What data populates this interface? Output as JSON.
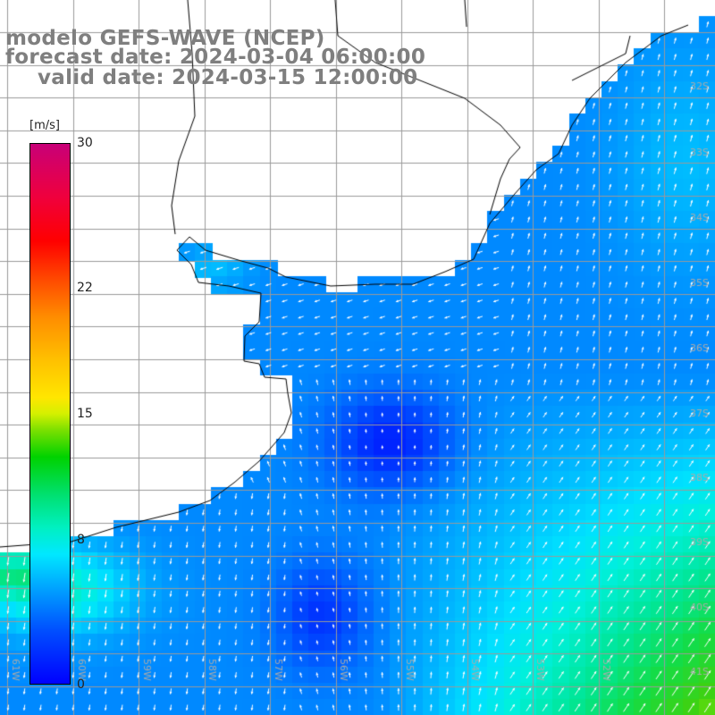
{
  "titles": {
    "model": "modelo GEFS-WAVE (NCEP)",
    "forecast": "forecast date: 2024-03-04 06:00:00",
    "valid": "valid date: 2024-03-15 12:00:00"
  },
  "colorbar": {
    "units": "[m/s]",
    "min": 0,
    "max": 30,
    "tick_labels": [
      "30",
      "22",
      "15",
      "8",
      "0"
    ],
    "tick_values": [
      30,
      22,
      15,
      8,
      0
    ],
    "palette": [
      "#0000ff",
      "#00a6ff",
      "#00e8ff",
      "#00d200",
      "#ffe600",
      "#ff8c00",
      "#ff0000",
      "#c80078"
    ]
  },
  "map": {
    "ocean_colors": {
      "deep_blue": "#0010ff",
      "blue": "#0064ff",
      "cyan": "#00e4ff",
      "green": "#20e060"
    },
    "lat_labels": [
      "32S",
      "33S",
      "34S",
      "35S",
      "36S",
      "37S",
      "38S",
      "39S",
      "40S",
      "41S"
    ],
    "lon_labels": [
      "61W",
      "60W",
      "59W",
      "58W",
      "57W",
      "56W",
      "55W",
      "54W",
      "53W",
      "52W"
    ],
    "land_color": "#ffffff",
    "coast_color": "#000000",
    "grid_color": "#9a9a9a",
    "arrow_color": "#ffffff"
  }
}
